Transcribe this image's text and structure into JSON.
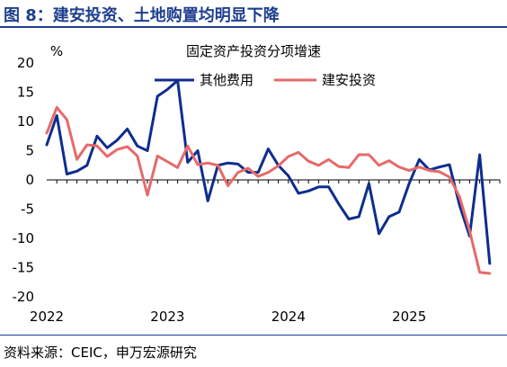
{
  "figure_title": "图 8：建安投资、土地购置均明显下降",
  "source_note": "资料来源：CEIC，申万宏源研究",
  "chart_data": {
    "type": "line",
    "title": "固定资产投资分项增速",
    "ylabel": "%",
    "xlabel": "",
    "ylim": [
      -20,
      20
    ],
    "yticks": [
      20,
      15,
      10,
      5,
      0,
      -5,
      -10,
      -15,
      -20
    ],
    "xticks": [
      "2022",
      "2023",
      "2024",
      "2025"
    ],
    "x_start": "2022-01",
    "x_end": "2025-10",
    "grid": false,
    "legend_position": "top",
    "series": [
      {
        "name": "其他费用",
        "color": "#0e2d8e",
        "x": [
          "2022-01",
          "2022-02",
          "2022-03",
          "2022-04",
          "2022-05",
          "2022-06",
          "2022-07",
          "2022-08",
          "2022-09",
          "2022-10",
          "2022-11",
          "2022-12",
          "2023-01",
          "2023-02",
          "2023-03",
          "2023-04",
          "2023-05",
          "2023-06",
          "2023-07",
          "2023-08",
          "2023-09",
          "2023-10",
          "2023-11",
          "2023-12",
          "2024-01",
          "2024-02",
          "2024-03",
          "2024-04",
          "2024-05",
          "2024-06",
          "2024-07",
          "2024-08",
          "2024-09",
          "2024-10",
          "2024-11",
          "2024-12",
          "2025-01",
          "2025-02",
          "2025-03",
          "2025-04",
          "2025-05",
          "2025-06",
          "2025-07",
          "2025-08",
          "2025-09"
        ],
        "values": [
          6.0,
          11.0,
          1.0,
          1.5,
          2.5,
          7.5,
          5.5,
          6.8,
          8.7,
          5.8,
          5.0,
          14.3,
          15.5,
          17.0,
          3.0,
          5.0,
          -3.6,
          2.5,
          2.9,
          2.7,
          1.3,
          1.3,
          5.3,
          2.5,
          0.7,
          -2.3,
          -1.9,
          -1.2,
          -1.2,
          -4.1,
          -6.7,
          -6.3,
          -0.6,
          -9.2,
          -6.3,
          -5.5,
          -0.6,
          3.5,
          1.7,
          2.2,
          2.6,
          -4.3,
          -9.6,
          4.3,
          -14.3
        ]
      },
      {
        "name": "建安投资",
        "color": "#e66a6a",
        "x": [
          "2022-01",
          "2022-02",
          "2022-03",
          "2022-04",
          "2022-05",
          "2022-06",
          "2022-07",
          "2022-08",
          "2022-09",
          "2022-10",
          "2022-11",
          "2022-12",
          "2023-01",
          "2023-02",
          "2023-03",
          "2023-04",
          "2023-05",
          "2023-06",
          "2023-07",
          "2023-08",
          "2023-09",
          "2023-10",
          "2023-11",
          "2023-12",
          "2024-01",
          "2024-02",
          "2024-03",
          "2024-04",
          "2024-05",
          "2024-06",
          "2024-07",
          "2024-08",
          "2024-09",
          "2024-10",
          "2024-11",
          "2024-12",
          "2025-01",
          "2025-02",
          "2025-03",
          "2025-04",
          "2025-05",
          "2025-06",
          "2025-07",
          "2025-08",
          "2025-09"
        ],
        "values": [
          8.0,
          12.4,
          10.3,
          3.5,
          6.0,
          5.8,
          4.0,
          5.2,
          5.7,
          4.1,
          -2.6,
          4.1,
          3.1,
          2.1,
          5.8,
          2.6,
          2.9,
          2.5,
          -1.0,
          1.3,
          2.0,
          0.6,
          1.3,
          2.4,
          4.0,
          4.7,
          3.2,
          2.5,
          3.5,
          2.3,
          2.1,
          4.3,
          4.3,
          2.5,
          3.3,
          2.2,
          1.6,
          2.2,
          1.6,
          1.4,
          0.5,
          -2.9,
          -8.7,
          -15.8,
          -16.0
        ]
      }
    ]
  }
}
